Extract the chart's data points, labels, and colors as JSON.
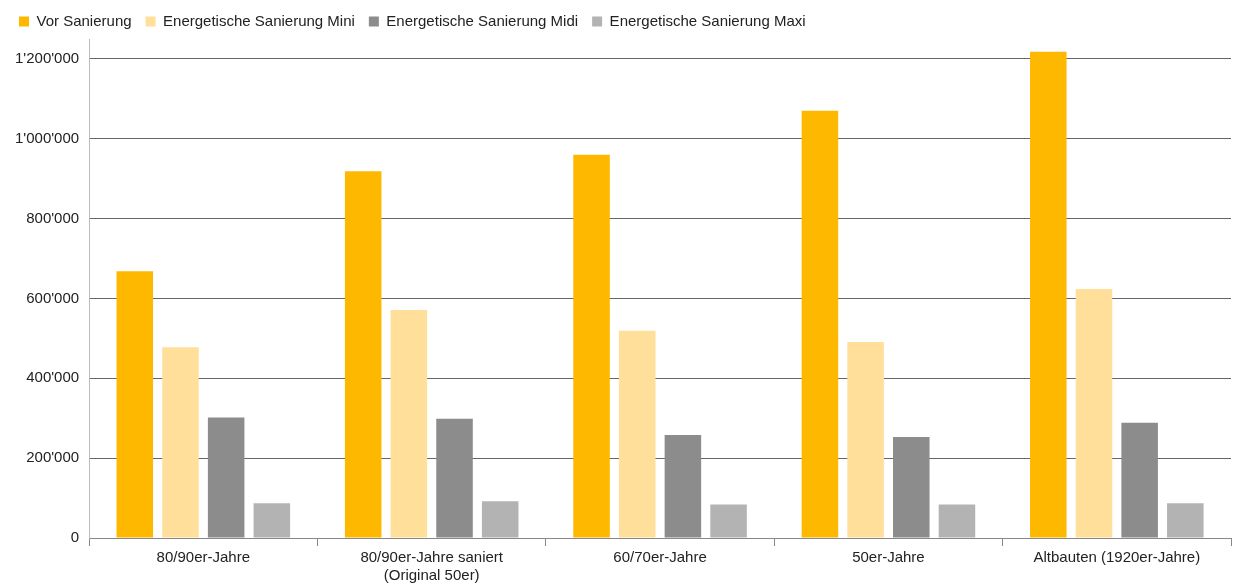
{
  "chart_data": {
    "type": "bar",
    "categories": [
      "80/90er-Jahre",
      "80/90er-Jahre saniert (Original 50er)",
      "60/70er-Jahre",
      "50er-Jahre",
      "Altbauten (1920er-Jahre)"
    ],
    "series": [
      {
        "name": "Vor Sanierung",
        "color": "#ffb800",
        "values": [
          668000,
          919000,
          960000,
          1070000,
          1218000
        ]
      },
      {
        "name": "Energetische Sanierung Mini",
        "color": "#ffdf9a",
        "values": [
          478000,
          571000,
          519000,
          491000,
          624000
        ]
      },
      {
        "name": "Energetische Sanierung Midi",
        "color": "#8c8c8c",
        "values": [
          302000,
          299000,
          258000,
          253000,
          289000
        ]
      },
      {
        "name": "Energetische Sanierung Maxi",
        "color": "#b3b3b3",
        "values": [
          87000,
          92000,
          84000,
          84000,
          87000
        ]
      }
    ],
    "ylim": [
      0,
      1250000
    ],
    "yticks": [
      0,
      {
        "value": 200000,
        "label": "200'000"
      },
      {
        "value": 400000,
        "label": "400'000"
      },
      {
        "value": 600000,
        "label": "600'000"
      },
      {
        "value": 800000,
        "label": "800'000"
      },
      {
        "value": 1000000,
        "label": "1'000'000"
      },
      {
        "value": 1200000,
        "label": "1'200'000"
      }
    ],
    "grid": "y",
    "legend": "top left"
  }
}
